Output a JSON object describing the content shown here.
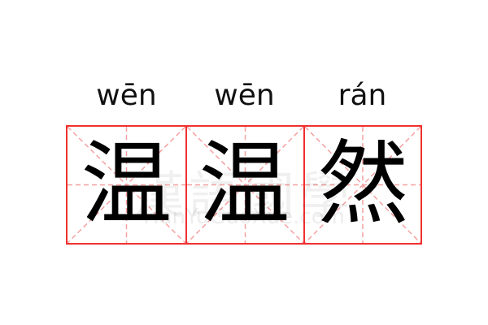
{
  "word": [
    {
      "pinyin": "wēn",
      "char": "温"
    },
    {
      "pinyin": "wēn",
      "char": "温"
    },
    {
      "pinyin": "rán",
      "char": "然"
    }
  ],
  "watermark": {
    "chars": "漢語國學",
    "site": "HanYuGuoXue.com"
  },
  "colors": {
    "grid_border": "#f03030",
    "guide": "#f5a0a0"
  }
}
